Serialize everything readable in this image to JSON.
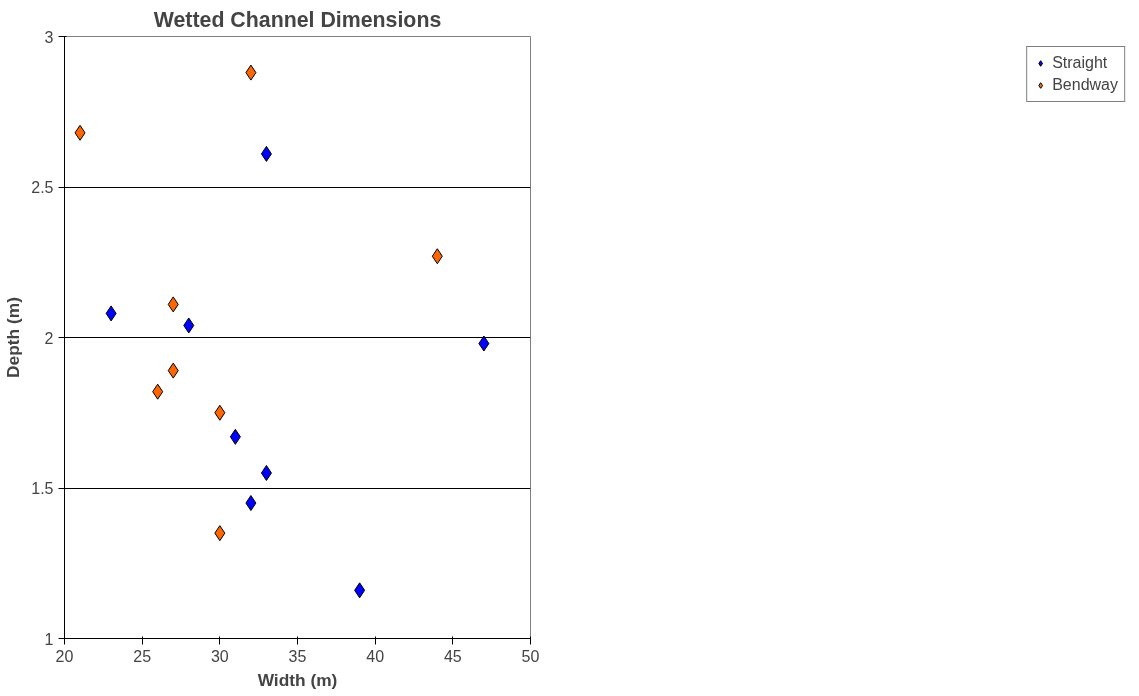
{
  "chart_data": {
    "type": "scatter",
    "title": "Wetted Channel Dimensions",
    "xlabel": "Width (m)",
    "ylabel": "Depth (m)",
    "xlim": [
      20,
      50
    ],
    "xticks": [
      20,
      25,
      30,
      35,
      40,
      45,
      50
    ],
    "ylim": [
      1,
      3
    ],
    "yticks": [
      1,
      1.5,
      2,
      2.5,
      3
    ],
    "grid": "y",
    "legend": "right",
    "marker": "diamond",
    "series": [
      {
        "name": "Straight",
        "color": "#0000ff",
        "x": [
          23,
          28,
          33,
          31,
          33,
          32,
          39,
          47
        ],
        "values": [
          2.08,
          2.04,
          2.61,
          1.67,
          1.55,
          1.45,
          1.16,
          1.98
        ]
      },
      {
        "name": "Bendway",
        "color": "#ff6600",
        "x": [
          21,
          32,
          27,
          27,
          26,
          30,
          30,
          44
        ],
        "values": [
          2.68,
          2.88,
          2.11,
          1.89,
          1.82,
          1.75,
          1.35,
          2.27
        ]
      }
    ]
  }
}
